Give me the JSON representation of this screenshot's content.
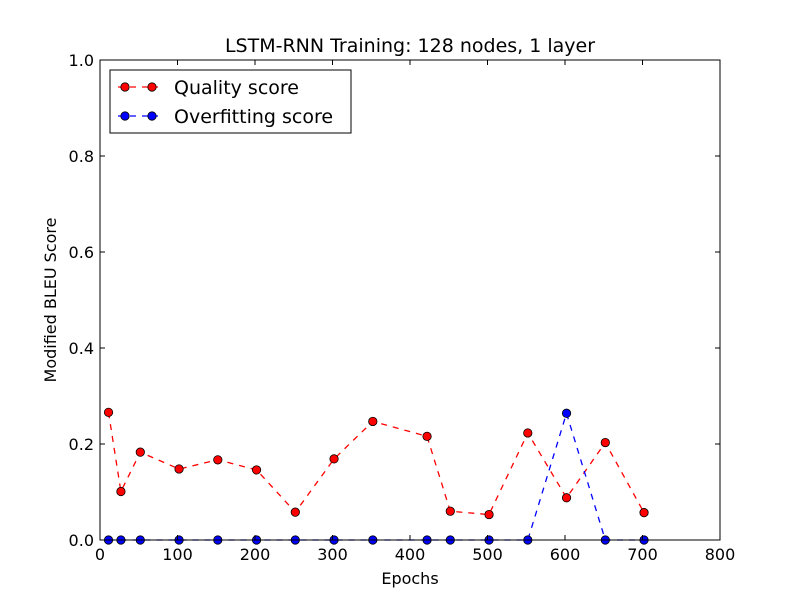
{
  "chart_data": {
    "type": "line",
    "title": "LSTM-RNN Training: 128 nodes, 1 layer",
    "xlabel": "Epochs",
    "ylabel": "Modified BLEU Score",
    "xlim": [
      0,
      800
    ],
    "ylim": [
      0.0,
      1.0
    ],
    "xticks": [
      0,
      100,
      200,
      300,
      400,
      500,
      600,
      700,
      800
    ],
    "yticks": [
      0.0,
      0.2,
      0.4,
      0.6,
      0.8,
      1.0
    ],
    "xtick_labels": [
      "0",
      "100",
      "200",
      "300",
      "400",
      "500",
      "600",
      "700",
      "800"
    ],
    "ytick_labels": [
      "0.0",
      "0.2",
      "0.4",
      "0.6",
      "0.8",
      "1.0"
    ],
    "grid": false,
    "legend_position": "top-left",
    "series": [
      {
        "name": "Quality score",
        "color": "#ff0000",
        "line_style": "dashed",
        "marker": "circle",
        "x": [
          11,
          27,
          52,
          102,
          152,
          202,
          252,
          302,
          352,
          422,
          452,
          502,
          552,
          602,
          652,
          702
        ],
        "y": [
          0.266,
          0.101,
          0.183,
          0.148,
          0.167,
          0.146,
          0.058,
          0.169,
          0.247,
          0.216,
          0.06,
          0.053,
          0.223,
          0.088,
          0.203,
          0.057
        ]
      },
      {
        "name": "Overfitting score",
        "color": "#0000ff",
        "line_style": "dashed",
        "marker": "circle",
        "x": [
          11,
          27,
          52,
          102,
          152,
          202,
          252,
          302,
          352,
          422,
          452,
          502,
          552,
          602,
          652,
          702
        ],
        "y": [
          0.0,
          0.0,
          0.0,
          0.0,
          0.0,
          0.0,
          0.0,
          0.0,
          0.0,
          0.0,
          0.0,
          0.0,
          0.0,
          0.264,
          0.0,
          0.0
        ]
      }
    ]
  }
}
